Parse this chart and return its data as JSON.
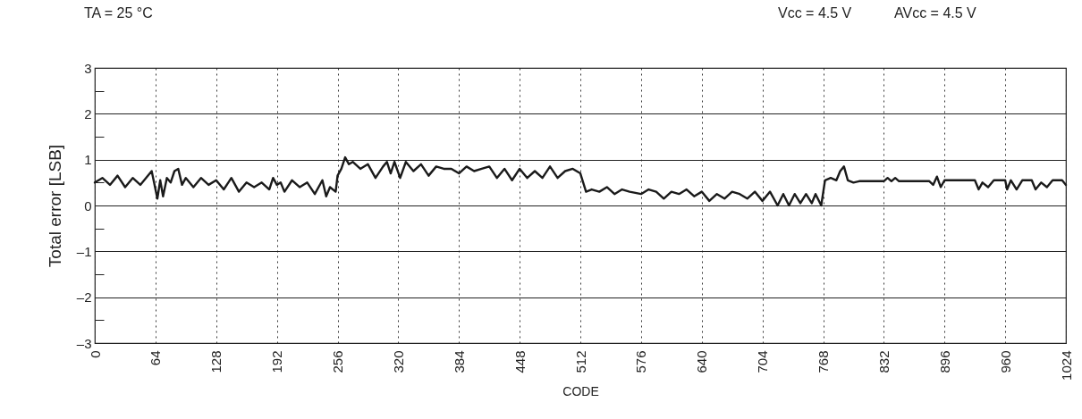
{
  "chart_data": {
    "type": "line",
    "xlabel": "CODE",
    "ylabel": "Total error [LSB]",
    "annotations": [
      "TA = 25 °C",
      "Vcc = 4.5 V",
      "AVcc = 4.5 V"
    ],
    "x": [
      0,
      8,
      16,
      24,
      32,
      40,
      48,
      54,
      60,
      66,
      69,
      72,
      76,
      80,
      84,
      88,
      92,
      96,
      104,
      112,
      120,
      128,
      136,
      144,
      152,
      160,
      168,
      176,
      184,
      188,
      192,
      196,
      200,
      208,
      216,
      224,
      232,
      240,
      244,
      248,
      254,
      256,
      260,
      264,
      268,
      272,
      280,
      288,
      296,
      304,
      308,
      312,
      316,
      322,
      328,
      336,
      344,
      352,
      360,
      368,
      376,
      384,
      392,
      400,
      408,
      416,
      424,
      432,
      440,
      448,
      456,
      464,
      472,
      480,
      488,
      496,
      504,
      512,
      518,
      524,
      532,
      540,
      548,
      556,
      564,
      576,
      584,
      592,
      600,
      608,
      616,
      624,
      632,
      640,
      648,
      656,
      664,
      672,
      680,
      688,
      696,
      704,
      712,
      720,
      726,
      732,
      738,
      744,
      750,
      756,
      760,
      766,
      770,
      776,
      782,
      786,
      790,
      794,
      800,
      806,
      832,
      836,
      840,
      844,
      848,
      880,
      884,
      888,
      892,
      896,
      928,
      932,
      936,
      942,
      948,
      960,
      962,
      966,
      972,
      978,
      988,
      992,
      998,
      1004,
      1010,
      1020,
      1024
    ],
    "series": [
      {
        "color": "#1a1a1a",
        "values": [
          0.5,
          0.6,
          0.45,
          0.65,
          0.4,
          0.6,
          0.45,
          0.6,
          0.75,
          0.15,
          0.55,
          0.2,
          0.6,
          0.5,
          0.75,
          0.8,
          0.45,
          0.6,
          0.4,
          0.6,
          0.45,
          0.55,
          0.35,
          0.6,
          0.3,
          0.5,
          0.4,
          0.5,
          0.35,
          0.6,
          0.45,
          0.5,
          0.3,
          0.55,
          0.4,
          0.5,
          0.25,
          0.55,
          0.2,
          0.4,
          0.3,
          0.65,
          0.8,
          1.05,
          0.9,
          0.95,
          0.8,
          0.9,
          0.6,
          0.85,
          0.95,
          0.7,
          0.95,
          0.6,
          0.95,
          0.75,
          0.9,
          0.65,
          0.85,
          0.8,
          0.8,
          0.7,
          0.85,
          0.75,
          0.8,
          0.85,
          0.6,
          0.8,
          0.55,
          0.8,
          0.6,
          0.75,
          0.6,
          0.85,
          0.6,
          0.75,
          0.8,
          0.7,
          0.3,
          0.35,
          0.3,
          0.4,
          0.25,
          0.35,
          0.3,
          0.25,
          0.35,
          0.3,
          0.15,
          0.3,
          0.25,
          0.35,
          0.2,
          0.3,
          0.1,
          0.25,
          0.15,
          0.3,
          0.25,
          0.15,
          0.3,
          0.1,
          0.3,
          0.0,
          0.25,
          0.0,
          0.25,
          0.05,
          0.25,
          0.05,
          0.25,
          0.0,
          0.55,
          0.6,
          0.55,
          0.75,
          0.85,
          0.55,
          0.5,
          0.53,
          0.53,
          0.6,
          0.53,
          0.6,
          0.53,
          0.53,
          0.45,
          0.63,
          0.4,
          0.55,
          0.55,
          0.35,
          0.5,
          0.4,
          0.55,
          0.55,
          0.35,
          0.55,
          0.35,
          0.55,
          0.55,
          0.35,
          0.5,
          0.4,
          0.55,
          0.55,
          0.45
        ]
      }
    ],
    "xlim": [
      0,
      1024
    ],
    "xticks": [
      0,
      64,
      128,
      192,
      256,
      320,
      384,
      448,
      512,
      576,
      640,
      704,
      768,
      832,
      896,
      960,
      1024
    ],
    "ylim": [
      -3,
      3
    ],
    "yticks": [
      3,
      {
        "value": 2.5,
        "label": null
      },
      2,
      {
        "value": 1.5,
        "label": null
      },
      1,
      {
        "value": 0.5,
        "label": null
      },
      0,
      {
        "value": -0.5,
        "label": null
      },
      {
        "value": -1,
        "label": "–1"
      },
      {
        "value": -1.5,
        "label": null
      },
      {
        "value": -2,
        "label": "–2"
      },
      {
        "value": -2.5,
        "label": null
      },
      {
        "value": -3,
        "label": "–3"
      }
    ],
    "grid": true,
    "line_style": "solid",
    "marker": "none"
  }
}
